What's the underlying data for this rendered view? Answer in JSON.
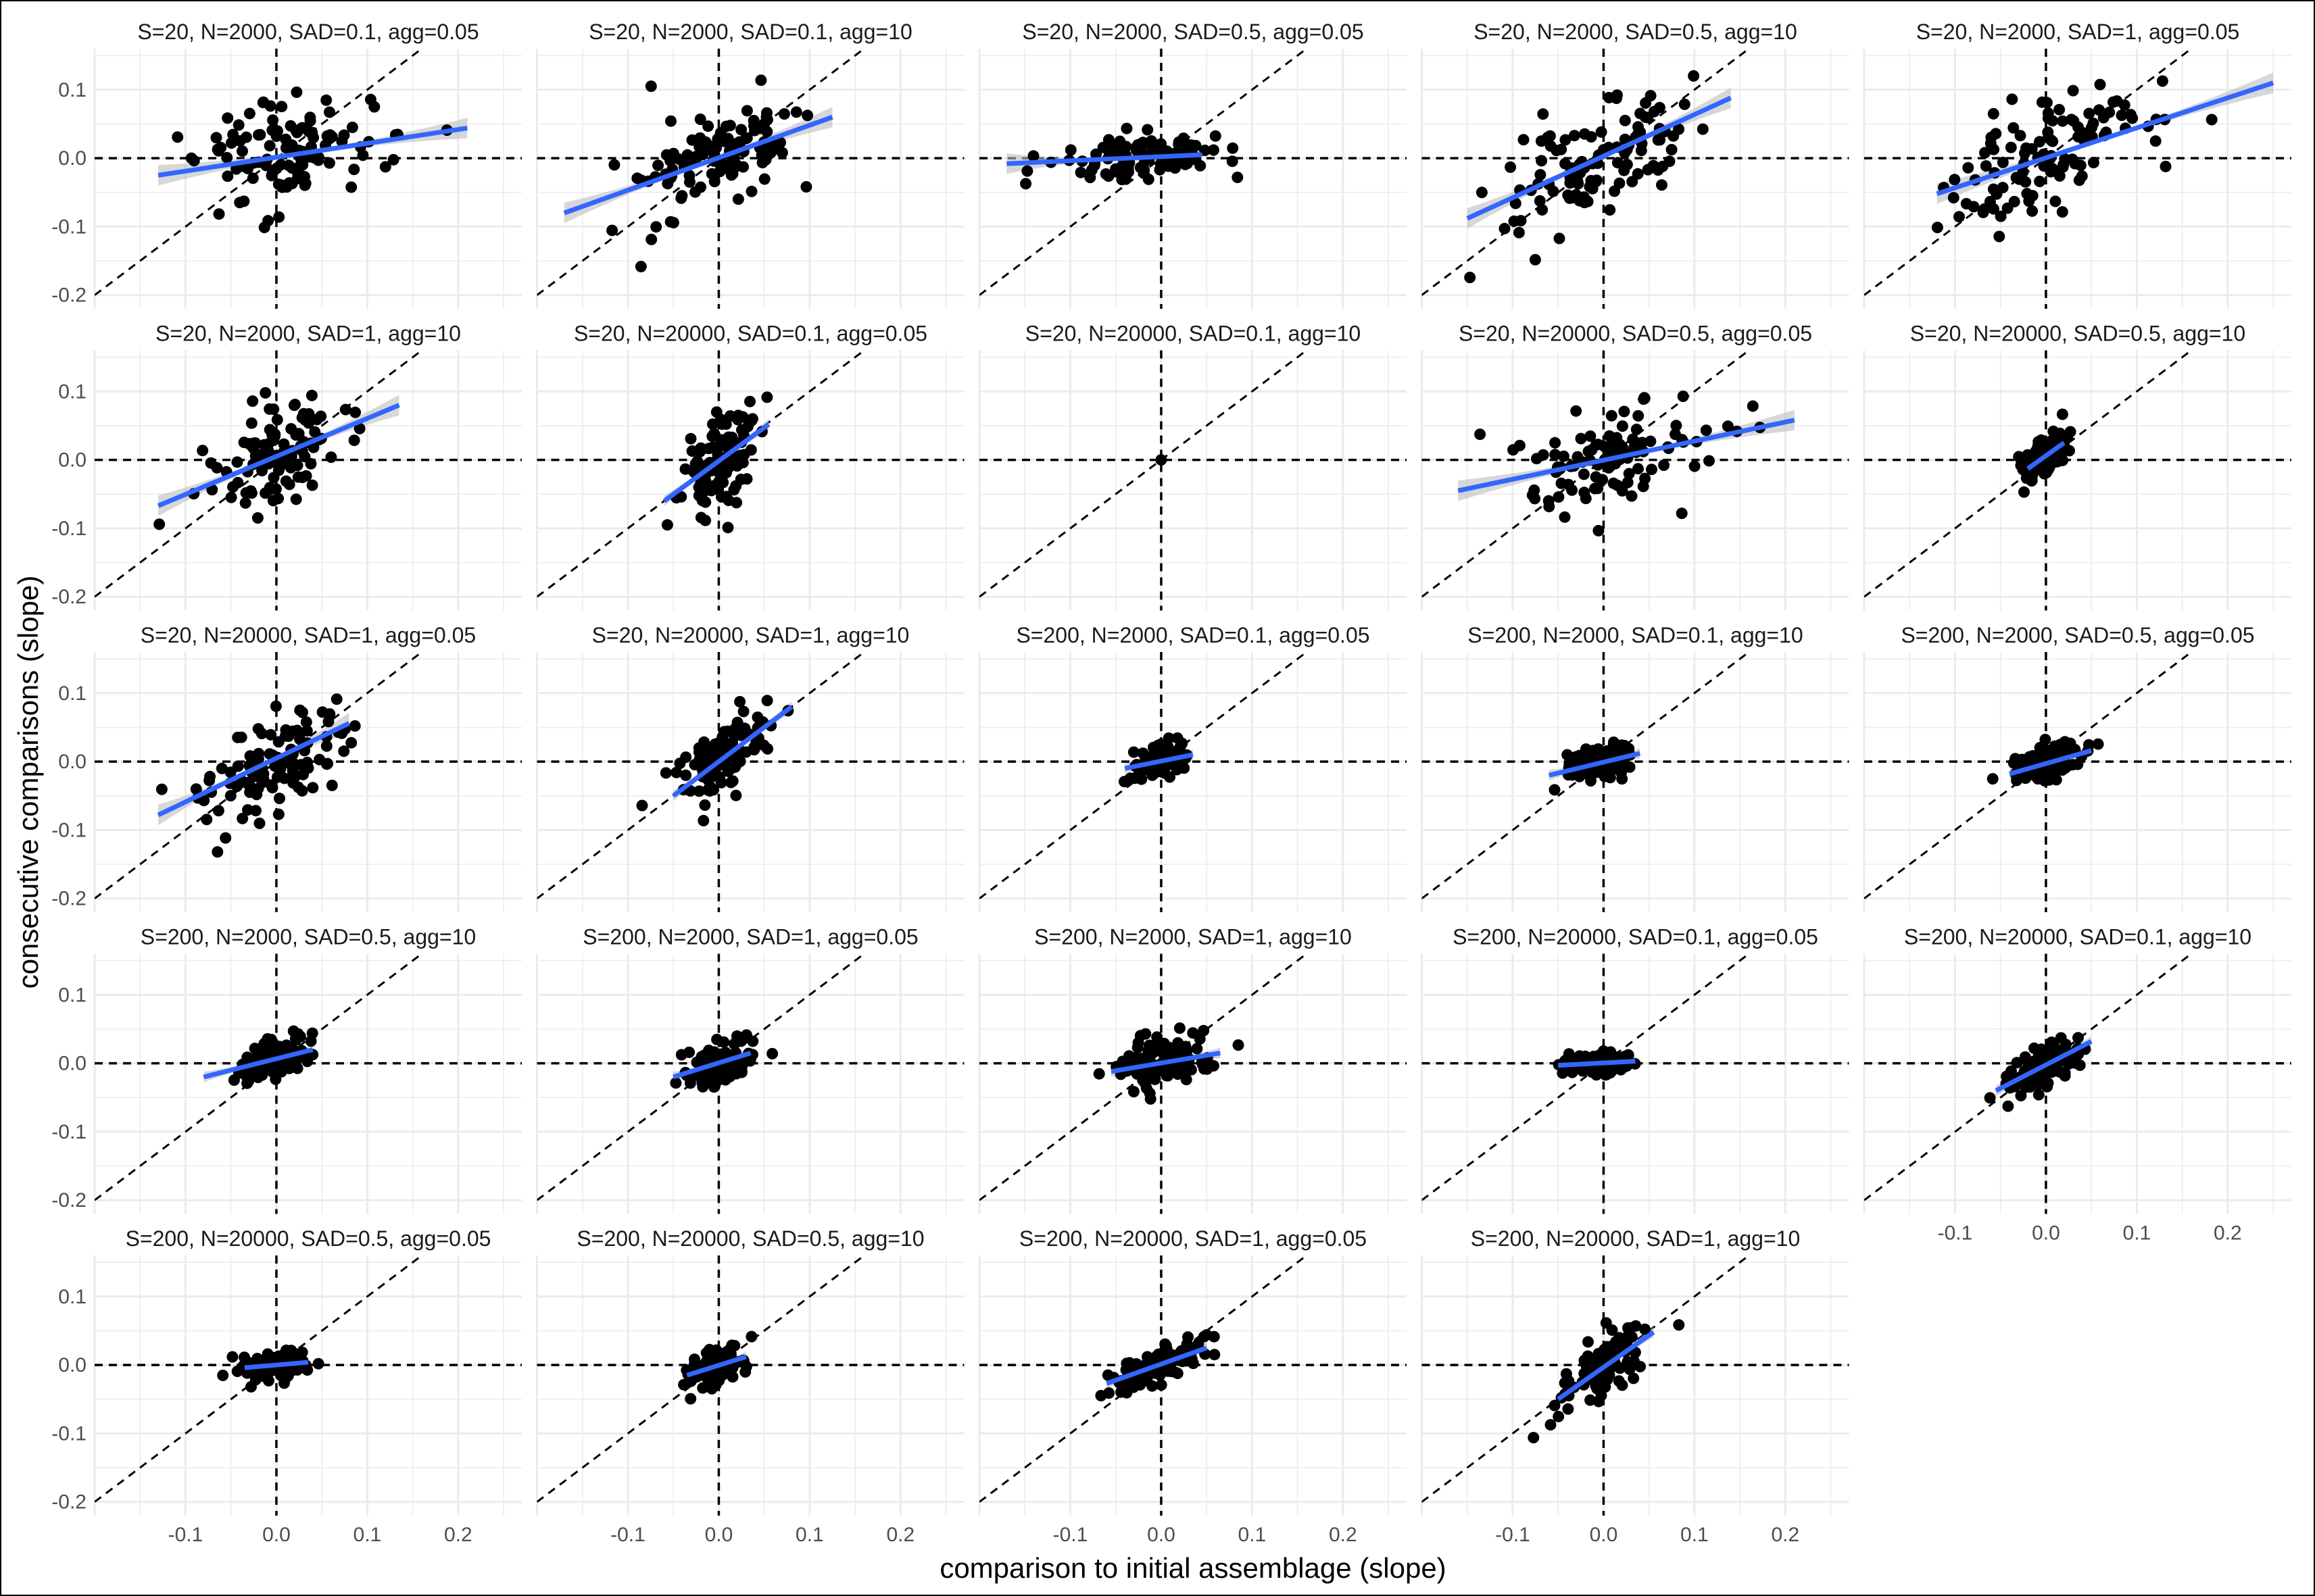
{
  "chart_data": {
    "type": "scatter",
    "xlabel": "comparison to initial assemblage (slope)",
    "ylabel": "consecutive comparisons (slope)",
    "xlim": [
      -0.2,
      0.27
    ],
    "ylim": [
      -0.22,
      0.16
    ],
    "x_ticks": [
      -0.1,
      0.0,
      0.1,
      0.2
    ],
    "x_tick_labels": [
      "-0.1",
      "0.0",
      "0.1",
      "0.2"
    ],
    "y_ticks": [
      -0.2,
      -0.1,
      0.0,
      0.1
    ],
    "y_tick_labels": [
      "-0.2",
      "-0.1",
      "0.0",
      "0.1"
    ],
    "reference_lines": [
      "x = 0 (dashed)",
      "y = 0 (dashed)",
      "y = x (dashed)"
    ],
    "grid": true,
    "colors": {
      "points": "#000000",
      "fit_line": "#3366ff",
      "ci_band": "#bdbdbd",
      "grid": "#ebebeb"
    },
    "panels": [
      {
        "title": "S=20, N=2000, SAD=0.1, agg=0.05",
        "spread": [
          0.055,
          0.04
        ],
        "fit": {
          "x": [
            -0.13,
            0.21
          ],
          "y": [
            -0.025,
            0.044
          ]
        }
      },
      {
        "title": "S=20, N=2000, SAD=0.1, agg=10",
        "spread": [
          0.05,
          0.038
        ],
        "fit": {
          "x": [
            -0.17,
            0.125
          ],
          "y": [
            -0.08,
            0.06
          ]
        }
      },
      {
        "title": "S=20, N=2000, SAD=0.5, agg=0.05",
        "spread": [
          0.045,
          0.015
        ],
        "fit": {
          "x": [
            -0.17,
            0.045
          ],
          "y": [
            -0.008,
            0.005
          ]
        }
      },
      {
        "title": "S=20, N=2000, SAD=0.5, agg=10",
        "spread": [
          0.05,
          0.04
        ],
        "fit": {
          "x": [
            -0.15,
            0.14
          ],
          "y": [
            -0.088,
            0.088
          ]
        }
      },
      {
        "title": "S=20, N=2000, SAD=1, agg=0.05",
        "spread": [
          0.06,
          0.045
        ],
        "fit": {
          "x": [
            -0.12,
            0.25
          ],
          "y": [
            -0.052,
            0.11
          ]
        }
      },
      {
        "title": "S=20, N=2000, SAD=1, agg=10",
        "spread": [
          0.035,
          0.035
        ],
        "fit": {
          "x": [
            -0.13,
            0.135
          ],
          "y": [
            -0.067,
            0.08
          ]
        }
      },
      {
        "title": "S=20, N=20000, SAD=0.1, agg=0.05",
        "spread": [
          0.02,
          0.03
        ],
        "fit": {
          "x": [
            -0.06,
            0.055
          ],
          "y": [
            -0.06,
            0.052
          ]
        }
      },
      {
        "title": "S=20, N=20000, SAD=0.1, agg=10",
        "spread": [
          0.0,
          0.0
        ],
        "fit": {
          "x": [
            0.0,
            0.0
          ],
          "y": [
            0.0,
            0.0
          ]
        }
      },
      {
        "title": "S=20, N=20000, SAD=0.5, agg=0.05",
        "spread": [
          0.045,
          0.035
        ],
        "fit": {
          "x": [
            -0.16,
            0.21
          ],
          "y": [
            -0.045,
            0.058
          ]
        }
      },
      {
        "title": "S=20, N=20000, SAD=0.5, agg=10",
        "spread": [
          0.012,
          0.015
        ],
        "fit": {
          "x": [
            -0.02,
            0.02
          ],
          "y": [
            -0.013,
            0.025
          ]
        }
      },
      {
        "title": "S=20, N=20000, SAD=1, agg=0.05",
        "spread": [
          0.04,
          0.035
        ],
        "fit": {
          "x": [
            -0.13,
            0.08
          ],
          "y": [
            -0.078,
            0.056
          ]
        }
      },
      {
        "title": "S=20, N=20000, SAD=1, agg=10",
        "spread": [
          0.022,
          0.025
        ],
        "fit": {
          "x": [
            -0.05,
            0.08
          ],
          "y": [
            -0.05,
            0.08
          ]
        }
      },
      {
        "title": "S=200, N=2000, SAD=0.1, agg=0.05",
        "spread": [
          0.015,
          0.012
        ],
        "fit": {
          "x": [
            -0.04,
            0.035
          ],
          "y": [
            -0.01,
            0.01
          ]
        }
      },
      {
        "title": "S=200, N=2000, SAD=0.1, agg=10",
        "spread": [
          0.02,
          0.012
        ],
        "fit": {
          "x": [
            -0.06,
            0.04
          ],
          "y": [
            -0.02,
            0.012
          ]
        }
      },
      {
        "title": "S=200, N=2000, SAD=0.5, agg=0.05",
        "spread": [
          0.02,
          0.012
        ],
        "fit": {
          "x": [
            -0.04,
            0.05
          ],
          "y": [
            -0.018,
            0.016
          ]
        }
      },
      {
        "title": "S=200, N=2000, SAD=0.5, agg=10",
        "spread": [
          0.018,
          0.014
        ],
        "fit": {
          "x": [
            -0.08,
            0.04
          ],
          "y": [
            -0.02,
            0.02
          ]
        }
      },
      {
        "title": "S=200, N=2000, SAD=1, agg=0.05",
        "spread": [
          0.02,
          0.016
        ],
        "fit": {
          "x": [
            -0.05,
            0.035
          ],
          "y": [
            -0.02,
            0.015
          ]
        }
      },
      {
        "title": "S=200, N=2000, SAD=1, agg=10",
        "spread": [
          0.025,
          0.018
        ],
        "fit": {
          "x": [
            -0.055,
            0.065
          ],
          "y": [
            -0.012,
            0.015
          ]
        }
      },
      {
        "title": "S=200, N=20000, SAD=0.1, agg=0.05",
        "spread": [
          0.015,
          0.008
        ],
        "fit": {
          "x": [
            -0.05,
            0.035
          ],
          "y": [
            -0.003,
            0.003
          ]
        }
      },
      {
        "title": "S=200, N=20000, SAD=0.1, agg=10",
        "spread": [
          0.02,
          0.015
        ],
        "fit": {
          "x": [
            -0.055,
            0.05
          ],
          "y": [
            -0.04,
            0.032
          ]
        }
      },
      {
        "title": "S=200, N=20000, SAD=0.5, agg=0.05",
        "spread": [
          0.018,
          0.01
        ],
        "fit": {
          "x": [
            -0.035,
            0.035
          ],
          "y": [
            -0.004,
            0.004
          ]
        }
      },
      {
        "title": "S=200, N=20000, SAD=0.5, agg=10",
        "spread": [
          0.015,
          0.012
        ],
        "fit": {
          "x": [
            -0.035,
            0.03
          ],
          "y": [
            -0.015,
            0.012
          ]
        }
      },
      {
        "title": "S=200, N=20000, SAD=1, agg=0.05",
        "spread": [
          0.025,
          0.012
        ],
        "fit": {
          "x": [
            -0.06,
            0.05
          ],
          "y": [
            -0.027,
            0.025
          ]
        }
      },
      {
        "title": "S=200, N=20000, SAD=1, agg=10",
        "spread": [
          0.022,
          0.02
        ],
        "fit": {
          "x": [
            -0.05,
            0.055
          ],
          "y": [
            -0.05,
            0.048
          ]
        }
      }
    ]
  }
}
